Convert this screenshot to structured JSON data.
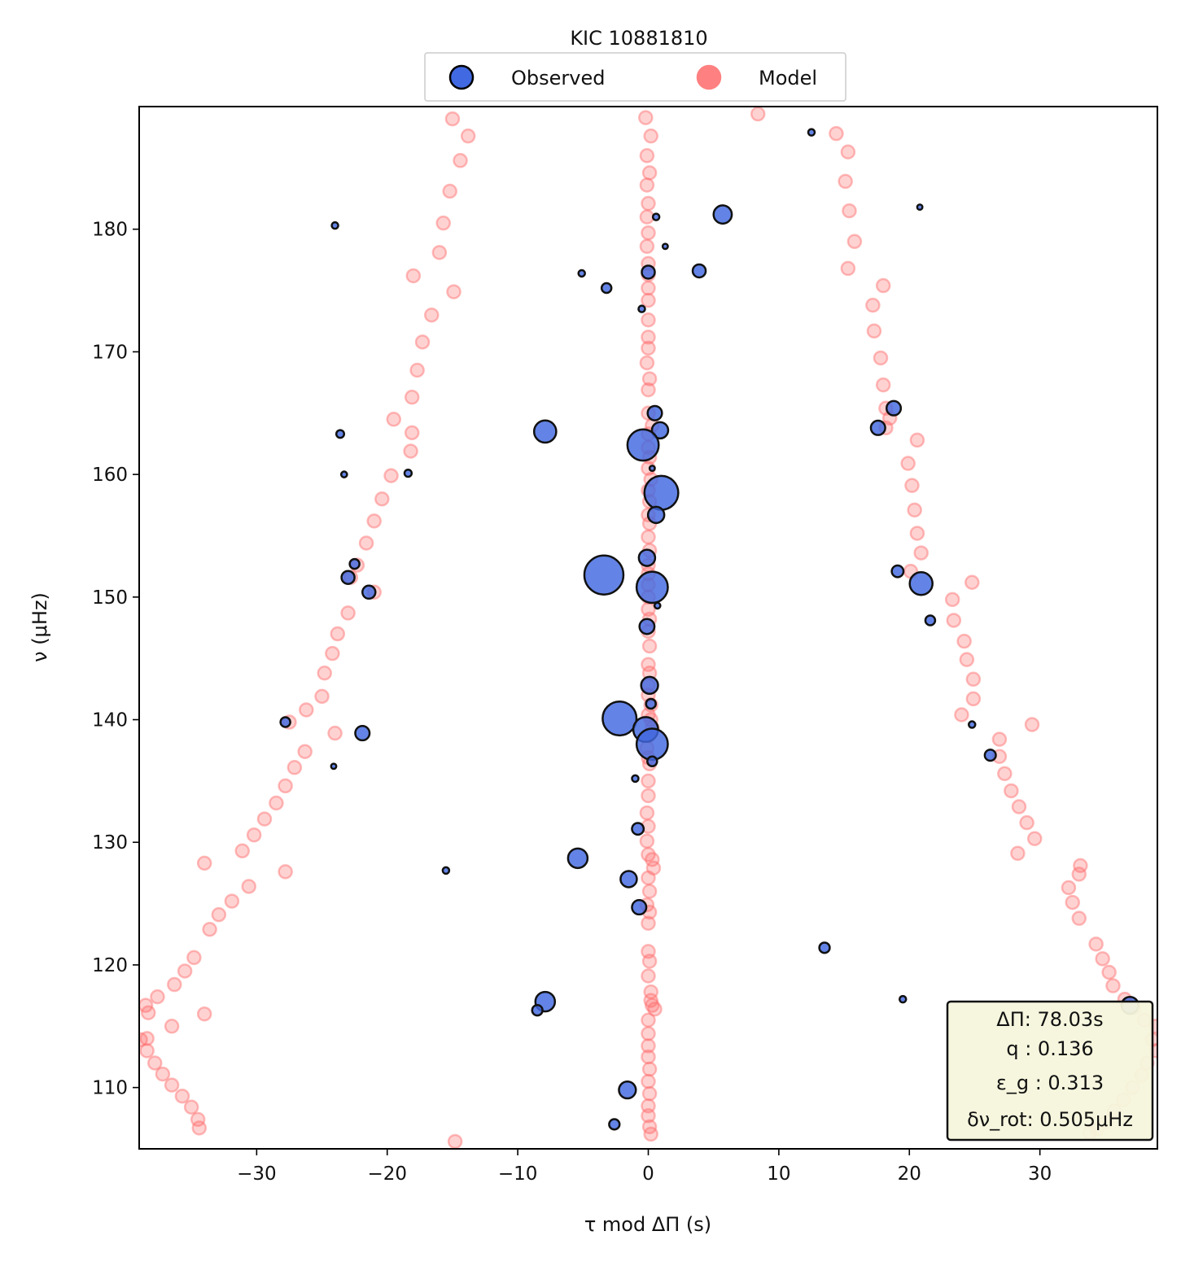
{
  "chart_data": {
    "type": "scatter",
    "title": "KIC 10881810",
    "xlabel": "τ mod ΔΠ (s)",
    "ylabel": "ν (μHz)",
    "xlim": [
      -39,
      39
    ],
    "ylim": [
      105,
      190
    ],
    "xticks": [
      -30,
      -20,
      -10,
      0,
      10,
      20,
      30
    ],
    "xtick_labels": [
      "−30",
      "−20",
      "−10",
      "0",
      "10",
      "20",
      "30"
    ],
    "yticks": [
      110,
      120,
      130,
      140,
      150,
      160,
      170,
      180
    ],
    "ytick_labels": [
      "110",
      "120",
      "130",
      "140",
      "150",
      "160",
      "170",
      "180"
    ],
    "grid": false,
    "legend": {
      "placement": "top-center, above axes",
      "entries": [
        "Observed",
        "Model"
      ]
    },
    "colors": {
      "observed_fill": "#4169e1",
      "observed_edge": "#111111",
      "model": "#ff6b6b",
      "param_box_bg": "#f5f5dc"
    },
    "params": {
      "dPi": "ΔΠ: 78.03s",
      "q": "q :  0.136",
      "eps_g": "ε_g : 0.313",
      "dnu_rot": "δν_rot: 0.505μHz"
    },
    "series": [
      {
        "name": "Model",
        "points": [
          [
            -15.0,
            189
          ],
          [
            -13.8,
            187.6
          ],
          [
            -14.4,
            185.6
          ],
          [
            -15.2,
            183.1
          ],
          [
            -15.7,
            180.5
          ],
          [
            -16.0,
            178.1
          ],
          [
            -18.0,
            176.2
          ],
          [
            -14.9,
            174.9
          ],
          [
            -16.6,
            173.0
          ],
          [
            -17.3,
            170.8
          ],
          [
            -17.7,
            168.5
          ],
          [
            -18.1,
            166.3
          ],
          [
            -19.5,
            164.5
          ],
          [
            -18.1,
            163.4
          ],
          [
            -18.2,
            161.9
          ],
          [
            -19.7,
            159.9
          ],
          [
            -20.4,
            158.0
          ],
          [
            -21.0,
            156.2
          ],
          [
            -21.6,
            154.4
          ],
          [
            -22.3,
            152.6
          ],
          [
            -22.8,
            151.6
          ],
          [
            -21.0,
            150.4
          ],
          [
            -23.0,
            148.7
          ],
          [
            -23.8,
            147.0
          ],
          [
            -24.2,
            145.4
          ],
          [
            -24.8,
            143.8
          ],
          [
            -25.0,
            141.9
          ],
          [
            -26.2,
            140.8
          ],
          [
            -27.5,
            139.8
          ],
          [
            -24.0,
            138.9
          ],
          [
            -26.3,
            137.4
          ],
          [
            -27.1,
            136.1
          ],
          [
            -27.8,
            134.6
          ],
          [
            -28.5,
            133.2
          ],
          [
            -29.4,
            131.9
          ],
          [
            -30.2,
            130.6
          ],
          [
            -31.1,
            129.3
          ],
          [
            -34.0,
            128.3
          ],
          [
            -27.8,
            127.6
          ],
          [
            -30.6,
            126.4
          ],
          [
            -31.9,
            125.2
          ],
          [
            -32.9,
            124.1
          ],
          [
            -33.6,
            122.9
          ],
          [
            -34.8,
            120.6
          ],
          [
            -35.5,
            119.5
          ],
          [
            -36.3,
            118.4
          ],
          [
            -37.6,
            117.4
          ],
          [
            -38.5,
            116.7
          ],
          [
            -38.3,
            116.1
          ],
          [
            -34.0,
            116.0
          ],
          [
            -36.5,
            115.0
          ],
          [
            -38.4,
            114.0
          ],
          [
            -38.9,
            113.9
          ],
          [
            -38.4,
            113.0
          ],
          [
            -37.8,
            112.0
          ],
          [
            -37.2,
            111.1
          ],
          [
            -36.5,
            110.2
          ],
          [
            -35.7,
            109.3
          ],
          [
            -35.0,
            108.4
          ],
          [
            -34.5,
            107.4
          ],
          [
            -34.4,
            106.7
          ],
          [
            -14.8,
            105.6
          ],
          [
            -0.2,
            189.1
          ],
          [
            0.2,
            187.6
          ],
          [
            -0.1,
            186.0
          ],
          [
            0.1,
            184.6
          ],
          [
            -0.1,
            183.6
          ],
          [
            0.0,
            182.1
          ],
          [
            -0.1,
            181.0
          ],
          [
            0.0,
            179.7
          ],
          [
            -0.1,
            178.6
          ],
          [
            0.0,
            177.2
          ],
          [
            0.0,
            176.3
          ],
          [
            0.0,
            175.2
          ],
          [
            0.0,
            174.2
          ],
          [
            0.0,
            172.6
          ],
          [
            0.0,
            171.2
          ],
          [
            0.0,
            170.3
          ],
          [
            -0.1,
            169.1
          ],
          [
            0.1,
            167.8
          ],
          [
            0.0,
            166.9
          ],
          [
            0.0,
            165.0
          ],
          [
            0.3,
            164.0
          ],
          [
            0.0,
            163.3
          ],
          [
            0.0,
            162.2
          ],
          [
            0.1,
            161.4
          ],
          [
            0.0,
            160.5
          ],
          [
            0.2,
            159.6
          ],
          [
            0.0,
            158.7
          ],
          [
            0.1,
            157.8
          ],
          [
            0.0,
            156.7
          ],
          [
            0.1,
            156.0
          ],
          [
            0.0,
            154.9
          ],
          [
            0.1,
            153.8
          ],
          [
            0.0,
            152.6
          ],
          [
            0.0,
            151.9
          ],
          [
            0.0,
            151.0
          ],
          [
            0.0,
            150.0
          ],
          [
            0.0,
            149.0
          ],
          [
            0.1,
            148.2
          ],
          [
            0.0,
            147.2
          ],
          [
            0.1,
            146.0
          ],
          [
            0.0,
            144.5
          ],
          [
            0.1,
            143.8
          ],
          [
            0.0,
            142.8
          ],
          [
            0.0,
            142.0
          ],
          [
            0.2,
            141.2
          ],
          [
            0.0,
            140.4
          ],
          [
            0.2,
            140.0
          ],
          [
            0.3,
            139.3
          ],
          [
            0.0,
            138.7
          ],
          [
            -0.1,
            137.7
          ],
          [
            0.0,
            136.9
          ],
          [
            0.1,
            136.4
          ],
          [
            0.0,
            135.0
          ],
          [
            0.0,
            133.8
          ],
          [
            -0.1,
            132.4
          ],
          [
            0.0,
            131.3
          ],
          [
            -0.1,
            130.1
          ],
          [
            0.0,
            129.0
          ],
          [
            0.3,
            128.6
          ],
          [
            0.4,
            127.9
          ],
          [
            0.0,
            127.1
          ],
          [
            0.1,
            126.0
          ],
          [
            -0.1,
            124.9
          ],
          [
            0.1,
            124.3
          ],
          [
            0.0,
            123.4
          ],
          [
            0.0,
            121.1
          ],
          [
            0.1,
            120.3
          ],
          [
            0.0,
            119.1
          ],
          [
            0.2,
            117.8
          ],
          [
            0.2,
            117.1
          ],
          [
            0.3,
            116.7
          ],
          [
            0.5,
            116.4
          ],
          [
            0.0,
            115.5
          ],
          [
            0.0,
            114.4
          ],
          [
            0.0,
            113.4
          ],
          [
            0.0,
            112.5
          ],
          [
            0.1,
            111.5
          ],
          [
            0.0,
            110.5
          ],
          [
            0.1,
            109.5
          ],
          [
            0.0,
            108.5
          ],
          [
            0.0,
            107.7
          ],
          [
            0.1,
            106.8
          ],
          [
            0.2,
            106.2
          ],
          [
            8.4,
            189.4
          ],
          [
            14.4,
            187.8
          ],
          [
            15.3,
            186.3
          ],
          [
            15.1,
            183.9
          ],
          [
            15.4,
            181.5
          ],
          [
            15.8,
            179.0
          ],
          [
            15.3,
            176.8
          ],
          [
            18.0,
            175.4
          ],
          [
            17.2,
            173.8
          ],
          [
            17.3,
            171.7
          ],
          [
            17.8,
            169.5
          ],
          [
            18.0,
            167.3
          ],
          [
            18.2,
            165.4
          ],
          [
            18.5,
            164.6
          ],
          [
            18.2,
            163.8
          ],
          [
            20.6,
            162.8
          ],
          [
            19.9,
            160.9
          ],
          [
            20.2,
            159.1
          ],
          [
            20.4,
            157.1
          ],
          [
            20.6,
            155.2
          ],
          [
            20.9,
            153.6
          ],
          [
            20.1,
            152.1
          ],
          [
            24.8,
            151.2
          ],
          [
            23.3,
            149.8
          ],
          [
            23.4,
            148.1
          ],
          [
            24.2,
            146.4
          ],
          [
            24.4,
            144.9
          ],
          [
            24.9,
            143.3
          ],
          [
            24.9,
            141.7
          ],
          [
            24.0,
            140.4
          ],
          [
            29.4,
            139.6
          ],
          [
            26.9,
            138.4
          ],
          [
            26.9,
            137.0
          ],
          [
            27.3,
            135.6
          ],
          [
            27.8,
            134.2
          ],
          [
            28.4,
            132.9
          ],
          [
            29.0,
            131.6
          ],
          [
            29.6,
            130.3
          ],
          [
            28.3,
            129.1
          ],
          [
            33.1,
            128.1
          ],
          [
            33.0,
            127.4
          ],
          [
            32.2,
            126.3
          ],
          [
            32.5,
            125.1
          ],
          [
            33.0,
            123.8
          ],
          [
            34.3,
            121.7
          ],
          [
            34.8,
            120.5
          ],
          [
            35.3,
            119.4
          ],
          [
            35.6,
            118.3
          ],
          [
            36.5,
            117.2
          ],
          [
            37.2,
            116.5
          ],
          [
            38.0,
            115.5
          ],
          [
            38.9,
            115.0
          ],
          [
            38.6,
            113.9
          ],
          [
            38.9,
            113.0
          ],
          [
            38.2,
            112.0
          ],
          [
            37.8,
            111.0
          ],
          [
            37.1,
            110.0
          ],
          [
            36.4,
            109.0
          ],
          [
            35.7,
            108.1
          ],
          [
            35.1,
            107.2
          ],
          [
            34.4,
            106.6
          ],
          [
            33.8,
            106.3
          ]
        ]
      },
      {
        "name": "Observed",
        "points": [
          [
            -24.0,
            180.3,
            1
          ],
          [
            -23.6,
            163.3,
            1.2
          ],
          [
            -23.3,
            160.0,
            0.9
          ],
          [
            -18.4,
            160.1,
            1.1
          ],
          [
            -22.5,
            152.7,
            1.5
          ],
          [
            -23.0,
            151.6,
            2
          ],
          [
            -21.4,
            150.4,
            2
          ],
          [
            -27.8,
            139.8,
            1.5
          ],
          [
            -21.9,
            138.9,
            2.2
          ],
          [
            -24.1,
            136.2,
            0.8
          ],
          [
            -15.5,
            127.7,
            1
          ],
          [
            -5.1,
            176.4,
            1
          ],
          [
            -3.2,
            175.2,
            1.5
          ],
          [
            -0.5,
            173.5,
            1
          ],
          [
            0.0,
            176.5,
            2
          ],
          [
            0.6,
            181.0,
            1
          ],
          [
            1.3,
            178.6,
            0.8
          ],
          [
            3.9,
            176.6,
            2
          ],
          [
            5.7,
            181.2,
            2.8
          ],
          [
            -7.9,
            163.5,
            3.4
          ],
          [
            0.5,
            165.0,
            2.2
          ],
          [
            0.9,
            163.6,
            2.5
          ],
          [
            -0.4,
            162.4,
            4.8
          ],
          [
            0.3,
            160.5,
            0.8
          ],
          [
            1.0,
            158.5,
            5.2
          ],
          [
            0.6,
            156.7,
            2.5
          ],
          [
            -0.1,
            153.2,
            2.5
          ],
          [
            -3.4,
            151.8,
            6
          ],
          [
            0.3,
            150.8,
            4.8
          ],
          [
            0.7,
            149.3,
            0.9
          ],
          [
            -0.1,
            147.6,
            2.3
          ],
          [
            0.1,
            142.8,
            2.6
          ],
          [
            0.2,
            141.3,
            1.5
          ],
          [
            -2.2,
            140.1,
            5.2
          ],
          [
            -0.2,
            139.2,
            3.8
          ],
          [
            0.3,
            138.0,
            4.8
          ],
          [
            0.3,
            136.6,
            1.5
          ],
          [
            -1.0,
            135.2,
            1
          ],
          [
            -0.8,
            131.1,
            1.8
          ],
          [
            -5.4,
            128.7,
            3
          ],
          [
            -1.5,
            127.0,
            2.5
          ],
          [
            -0.7,
            124.7,
            2.2
          ],
          [
            -7.9,
            117.0,
            3
          ],
          [
            -8.5,
            116.3,
            1.6
          ],
          [
            -1.6,
            109.8,
            2.6
          ],
          [
            -2.6,
            107.0,
            1.6
          ],
          [
            12.5,
            187.9,
            1
          ],
          [
            20.8,
            181.8,
            0.8
          ],
          [
            18.8,
            165.4,
            2.2
          ],
          [
            17.6,
            163.8,
            2.2
          ],
          [
            19.1,
            152.1,
            1.8
          ],
          [
            20.9,
            151.1,
            3.5
          ],
          [
            21.6,
            148.1,
            1.5
          ],
          [
            24.8,
            139.6,
            1
          ],
          [
            26.2,
            137.1,
            1.7
          ],
          [
            13.5,
            121.4,
            1.6
          ],
          [
            19.5,
            117.2,
            1
          ],
          [
            36.9,
            116.7,
            2.6
          ]
        ]
      }
    ]
  }
}
